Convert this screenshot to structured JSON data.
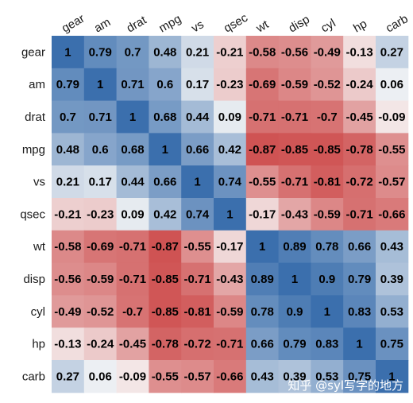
{
  "chart_data": {
    "type": "heatmap",
    "row_labels": [
      "gear",
      "am",
      "drat",
      "mpg",
      "vs",
      "qsec",
      "wt",
      "disp",
      "cyl",
      "hp",
      "carb"
    ],
    "col_labels": [
      "gear",
      "am",
      "drat",
      "mpg",
      "vs",
      "qsec",
      "wt",
      "disp",
      "cyl",
      "hp",
      "carb"
    ],
    "values": [
      [
        1,
        0.79,
        0.7,
        0.48,
        0.21,
        -0.21,
        -0.58,
        -0.56,
        -0.49,
        -0.13,
        0.27
      ],
      [
        0.79,
        1,
        0.71,
        0.6,
        0.17,
        -0.23,
        -0.69,
        -0.59,
        -0.52,
        -0.24,
        0.06
      ],
      [
        0.7,
        0.71,
        1,
        0.68,
        0.44,
        0.09,
        -0.71,
        -0.71,
        -0.7,
        -0.45,
        -0.09
      ],
      [
        0.48,
        0.6,
        0.68,
        1,
        0.66,
        0.42,
        -0.87,
        -0.85,
        -0.85,
        -0.78,
        -0.55
      ],
      [
        0.21,
        0.17,
        0.44,
        0.66,
        1,
        0.74,
        -0.55,
        -0.71,
        -0.81,
        -0.72,
        -0.57
      ],
      [
        -0.21,
        -0.23,
        0.09,
        0.42,
        0.74,
        1,
        -0.17,
        -0.43,
        -0.59,
        -0.71,
        -0.66
      ],
      [
        -0.58,
        -0.69,
        -0.71,
        -0.87,
        -0.55,
        -0.17,
        1,
        0.89,
        0.78,
        0.66,
        0.43
      ],
      [
        -0.56,
        -0.59,
        -0.71,
        -0.85,
        -0.71,
        -0.43,
        0.89,
        1,
        0.9,
        0.79,
        0.39
      ],
      [
        -0.49,
        -0.52,
        -0.7,
        -0.85,
        -0.81,
        -0.59,
        0.78,
        0.9,
        1,
        0.83,
        0.53
      ],
      [
        -0.13,
        -0.24,
        -0.45,
        -0.78,
        -0.72,
        -0.71,
        0.66,
        0.79,
        0.83,
        1,
        0.75
      ],
      [
        0.27,
        0.06,
        -0.09,
        -0.55,
        -0.57,
        -0.66,
        0.43,
        0.39,
        0.53,
        0.75,
        1
      ]
    ],
    "value_range": [
      -1,
      1
    ],
    "colors": {
      "positive": "#3b6fad",
      "neutral": "#f7f7f7",
      "negative": "#c93a3a"
    },
    "grid": false,
    "legend": "none"
  },
  "watermark": "知乎 @syl写字的地方"
}
